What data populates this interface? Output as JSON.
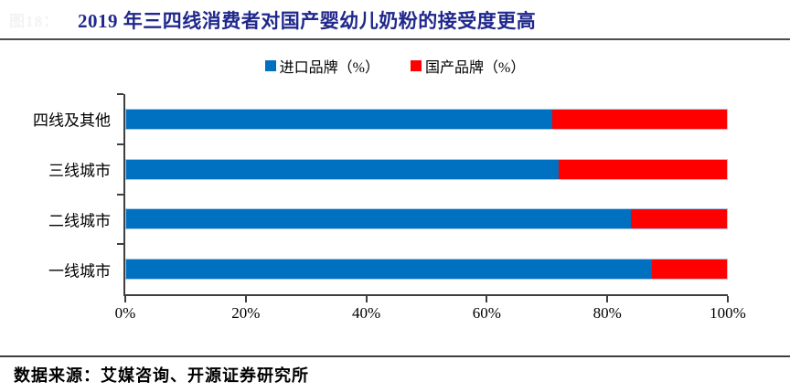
{
  "header": {
    "figure_label": "图18：",
    "title": "2019 年三四线消费者对国产婴幼儿奶粉的接受度更高"
  },
  "chart_data": {
    "type": "bar",
    "orientation": "horizontal",
    "stacked": true,
    "title": "2019 年三四线消费者对国产婴幼儿奶粉的接受度更高",
    "categories": [
      "四线及其他",
      "三线城市",
      "二线城市",
      "一线城市"
    ],
    "series": [
      {
        "name": "进口品牌（%）",
        "color": "#0070C0",
        "values": [
          71,
          72,
          84,
          87.5
        ]
      },
      {
        "name": "国产品牌（%）",
        "color": "#FF0000",
        "values": [
          29,
          28,
          16,
          12.5
        ]
      }
    ],
    "x_ticks": [
      "0%",
      "20%",
      "40%",
      "60%",
      "80%",
      "100%"
    ],
    "xlim": [
      0,
      100
    ],
    "legend_position": "top-center",
    "grid": false
  },
  "footer": {
    "source": "数据来源：艾媒咨询、开源证券研究所"
  },
  "colors": {
    "title": "#20288C",
    "imported_series": "#0070C0",
    "domestic_series": "#FF0000",
    "axis": "#3F3F3F",
    "bar_border": "#A9C7E9"
  }
}
